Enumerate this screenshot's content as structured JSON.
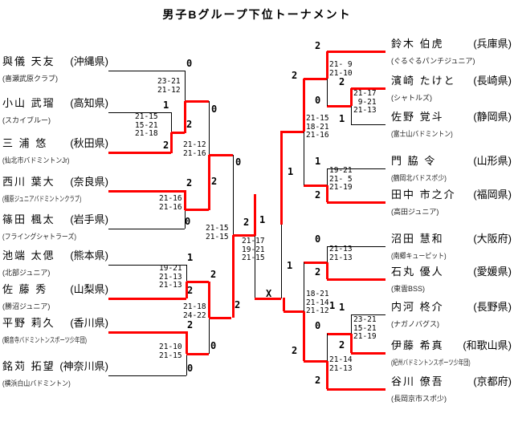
{
  "title": "男子Bグループ下位トーナメント",
  "accent_color": "#ff0000",
  "line_color": "#000000",
  "players": {
    "left": [
      {
        "name": "與儀 天友",
        "prefecture": "(沖縄県)",
        "club": "(喜瀬武原クラブ)"
      },
      {
        "name": "小山 武瑠",
        "prefecture": "(高知県)",
        "club": "(スカイブルー)"
      },
      {
        "name": "三 浦  悠",
        "prefecture": "(秋田県)",
        "club": "(仙北市バドミントンJr)"
      },
      {
        "name": "西川 葉大",
        "prefecture": "(奈良県)",
        "club": "(橿原ジュニアバドミントンクラブ)"
      },
      {
        "name": "篠田 楓太",
        "prefecture": "(岩手県)",
        "club": "(フライングシャトラーズ)"
      },
      {
        "name": "池端 太偲",
        "prefecture": "(熊本県)",
        "club": "(北部ジュニア)"
      },
      {
        "name": "佐 藤  秀",
        "prefecture": "(山梨県)",
        "club": "(勝沼ジュニア)"
      },
      {
        "name": "平野 莉久",
        "prefecture": "(香川県)",
        "club": "(観音寺バドミントンスポーツ少年団)"
      },
      {
        "name": "銘苅 拓望",
        "prefecture": "(神奈川県)",
        "club": "(横浜白山バドミントン)"
      }
    ],
    "right": [
      {
        "name": "鈴木 伯虎",
        "prefecture": "(兵庫県)",
        "club": "(ぐるぐるパンチジュニア)"
      },
      {
        "name": "濱崎 たけと",
        "prefecture": "(長崎県)",
        "club": "(シャトルズ)"
      },
      {
        "name": "佐野 覚斗",
        "prefecture": "(静岡県)",
        "club": "(富士山バドミントン)"
      },
      {
        "name": "門 脇  令",
        "prefecture": "(山形県)",
        "club": "(鶴岡北バドスポ少)"
      },
      {
        "name": "田中 市之介",
        "prefecture": "(福岡県)",
        "club": "(高田ジュニア)"
      },
      {
        "name": "沼田 慧和",
        "prefecture": "(大阪府)",
        "club": "(南郷キューピット)"
      },
      {
        "name": "石丸 優人",
        "prefecture": "(愛媛県)",
        "club": "(東雲BSS)"
      },
      {
        "name": "内河 柊介",
        "prefecture": "(長野県)",
        "club": "(ナガノバグス)"
      },
      {
        "name": "伊藤 希真",
        "prefecture": "(和歌山県)",
        "club": "(紀州バドミントンスポーツ少年団)"
      },
      {
        "name": "谷川 僚吾",
        "prefecture": "(京都府)",
        "club": "(長岡京市スポ少)"
      }
    ]
  },
  "scores": {
    "l_qf1": "23-21\n21-12",
    "l_r1a": "21-15\n15-21\n21-18",
    "l_sfa": "21-12\n21-16",
    "l_qf2": "21-16\n21-16",
    "l_r1b": "19-21\n21-13\n21-13",
    "l_sfb": "21-18\n24-22",
    "l_r1c": "21-10\n21-15",
    "l_final": "21-15\n21-15",
    "grand_final": "21-17\n19-21\n21-15",
    "r_qf1": "21- 9\n21-10",
    "r_r1a": "21-17\n 9-21\n21-13",
    "r_sf1": "21-15\n18-21\n21-16",
    "r_qf2": "19-21\n21- 5\n21-19",
    "r_qf3": "21-13\n21-13",
    "r_sf2": "18-21\n21-14\n21-12",
    "r_r1b": "23-21\n15-21\n21-19",
    "r_qf4": "21-14\n21-13"
  },
  "labels": {
    "l_qf1_top": "0",
    "l_r1a_top": "1",
    "l_r1a_bot": "2",
    "l_qf1_bot": "2",
    "l_sfa_top": "0",
    "l_qf2_top": "2",
    "l_qf2_bot": "0",
    "l_sfa_bot": "2",
    "l_final_top": "0",
    "l_final_bot": "2",
    "l_r1b_top": "1",
    "l_r1b_bot": "2",
    "l_sfb_top": "2",
    "l_sfb_bot": "0",
    "l_r1c_top": "2",
    "l_r1c_bot": "0",
    "gf_left": "2",
    "gf_right": "1",
    "rf_upper": "1",
    "rf_walkover": "X",
    "r_qf1_top": "2",
    "r_qf1_bot": "0",
    "r_r1a_top": "2",
    "r_r1a_bot": "1",
    "r_sf1_top": "2",
    "r_sf1_bot": "1",
    "r_qf2_top": "1",
    "r_qf2_bot": "2",
    "r_qf3_top": "0",
    "r_qf3_bot": "2",
    "r_sf2_top": "1",
    "r_sf2_bot": "2",
    "r_r1b_top": "1",
    "r_r1b_bot": "2",
    "r_qf4_top": "0",
    "r_qf4_bot": "2"
  }
}
